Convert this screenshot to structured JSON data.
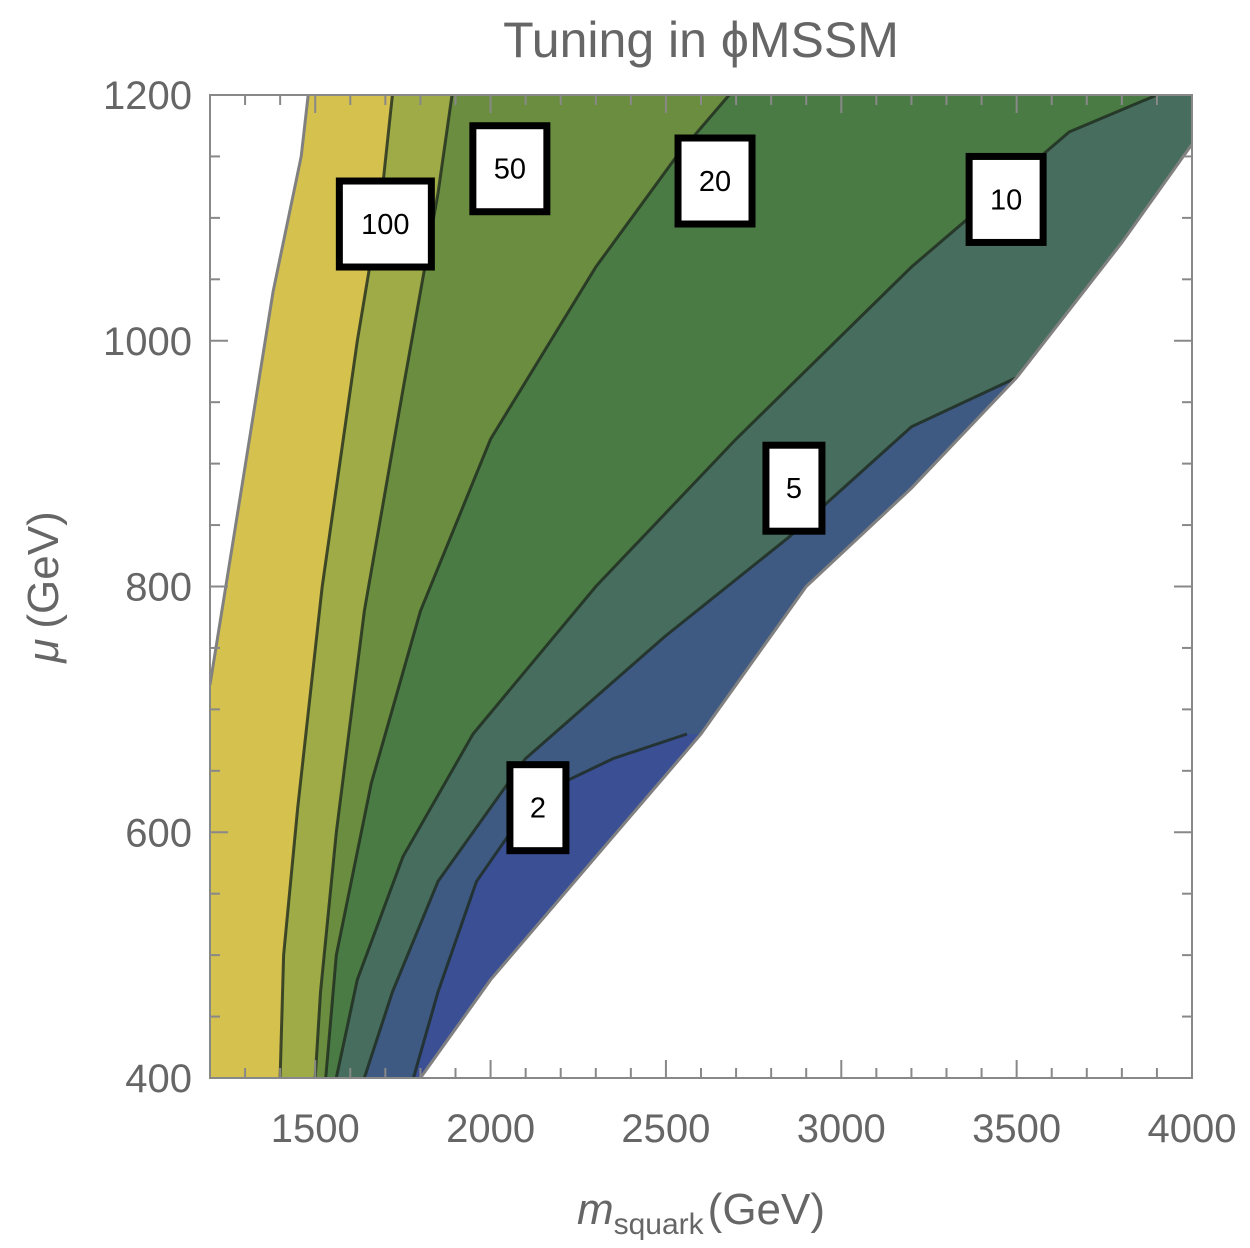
{
  "chart_data": {
    "type": "contour",
    "title": "Tuning in ϕMSSM",
    "xlabel": {
      "main": "m",
      "subscript": "squark",
      "unit": "(GeV)"
    },
    "ylabel": {
      "main": "μ",
      "unit": "(GeV)"
    },
    "xlim": [
      1200,
      4000
    ],
    "ylim": [
      400,
      1200
    ],
    "x_ticks": [
      1500,
      2000,
      2500,
      3000,
      3500,
      4000
    ],
    "x_tick_labels": [
      "1500",
      "2000",
      "2500",
      "3000",
      "3500",
      "4000"
    ],
    "y_ticks": [
      400,
      600,
      800,
      1000,
      1200
    ],
    "y_tick_labels": [
      "400",
      "600",
      "800",
      "1000",
      "1200"
    ],
    "boundaries": {
      "left": [
        [
          1200,
          720
        ],
        [
          1290,
          880
        ],
        [
          1380,
          1040
        ],
        [
          1460,
          1150
        ],
        [
          1480,
          1200
        ]
      ],
      "right": [
        [
          1800,
          400
        ],
        [
          2000,
          480
        ],
        [
          2300,
          580
        ],
        [
          2600,
          680
        ],
        [
          2900,
          800
        ],
        [
          3200,
          880
        ],
        [
          3500,
          970
        ],
        [
          3800,
          1080
        ],
        [
          4000,
          1160
        ]
      ]
    },
    "contours": [
      {
        "level": 100,
        "label": "100",
        "color": "#d4c14e",
        "points": [
          [
            1400,
            400
          ],
          [
            1410,
            500
          ],
          [
            1450,
            620
          ],
          [
            1520,
            800
          ],
          [
            1620,
            1000
          ],
          [
            1690,
            1120
          ],
          [
            1720,
            1200
          ]
        ]
      },
      {
        "level": 50,
        "label": "50",
        "color": "#9eab47",
        "points": [
          [
            1500,
            400
          ],
          [
            1515,
            470
          ],
          [
            1560,
            600
          ],
          [
            1640,
            780
          ],
          [
            1750,
            960
          ],
          [
            1850,
            1120
          ],
          [
            1890,
            1200
          ]
        ]
      },
      {
        "level": 20,
        "label": "20",
        "color": "#6a8d40",
        "points": [
          [
            1530,
            400
          ],
          [
            1560,
            500
          ],
          [
            1660,
            640
          ],
          [
            1800,
            780
          ],
          [
            2000,
            920
          ],
          [
            2300,
            1060
          ],
          [
            2530,
            1150
          ],
          [
            2680,
            1200
          ]
        ]
      },
      {
        "level": 10,
        "label": "10",
        "color": "#4b7b45",
        "points": [
          [
            1560,
            400
          ],
          [
            1620,
            480
          ],
          [
            1750,
            580
          ],
          [
            1950,
            680
          ],
          [
            2300,
            800
          ],
          [
            2700,
            920
          ],
          [
            3200,
            1060
          ],
          [
            3650,
            1170
          ],
          [
            3900,
            1200
          ]
        ]
      },
      {
        "level": 5,
        "label": "5",
        "color": "#476d5e",
        "points": [
          [
            1640,
            400
          ],
          [
            1720,
            470
          ],
          [
            1850,
            560
          ],
          [
            2100,
            660
          ],
          [
            2500,
            760
          ],
          [
            2850,
            840
          ],
          [
            3200,
            930
          ],
          [
            3500,
            970
          ]
        ]
      },
      {
        "level": 2,
        "label": "2",
        "color": "#3f5a82",
        "points": [
          [
            1780,
            400
          ],
          [
            1850,
            470
          ],
          [
            1960,
            560
          ],
          [
            2130,
            630
          ],
          [
            2350,
            660
          ],
          [
            2560,
            680
          ]
        ]
      }
    ],
    "lowest_region_color": "#3b4f94",
    "contour_labels": [
      {
        "text": "100",
        "x": 1700,
        "y": 1095
      },
      {
        "text": "50",
        "x": 2055,
        "y": 1140
      },
      {
        "text": "20",
        "x": 2640,
        "y": 1130
      },
      {
        "text": "10",
        "x": 3470,
        "y": 1115
      },
      {
        "text": "5",
        "x": 2865,
        "y": 880
      },
      {
        "text": "2",
        "x": 2135,
        "y": 620
      }
    ]
  }
}
